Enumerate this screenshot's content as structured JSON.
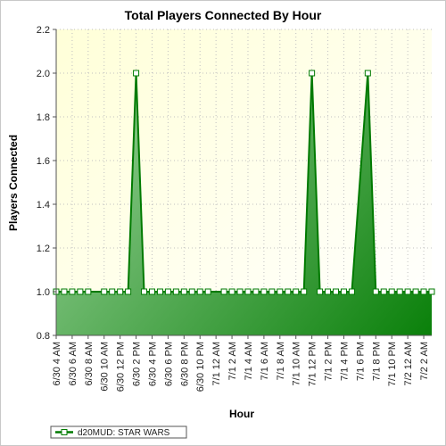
{
  "chart_data": {
    "type": "area",
    "title": "Total Players Connected By Hour",
    "xlabel": "Hour",
    "ylabel": "Players Connected",
    "ylim": [
      0.8,
      2.2
    ],
    "yticks": [
      "0.8",
      "1.0",
      "1.2",
      "1.4",
      "1.6",
      "1.8",
      "2.0",
      "2.2"
    ],
    "grid": true,
    "legend_position": "bottom-left",
    "colors": {
      "line": "#007a00",
      "fill_light": "#a5d8a5",
      "fill_dark": "#0a800a",
      "plot_bg_top": "#ffffd8",
      "plot_bg_bottom": "#ffffff"
    },
    "x": [
      "6/30 4 AM",
      "6/30 5 AM",
      "6/30 6 AM",
      "6/30 7 AM",
      "6/30 8 AM",
      "6/30 9 AM",
      "6/30 10 AM",
      "6/30 11 AM",
      "6/30 12 PM",
      "6/30 1 PM",
      "6/30 2 PM",
      "6/30 3 PM",
      "6/30 4 PM",
      "6/30 5 PM",
      "6/30 6 PM",
      "6/30 7 PM",
      "6/30 8 PM",
      "6/30 9 PM",
      "6/30 10 PM",
      "6/30 11 PM",
      "7/1 12 AM",
      "7/1 1 AM",
      "7/1 2 AM",
      "7/1 3 AM",
      "7/1 4 AM",
      "7/1 5 AM",
      "7/1 6 AM",
      "7/1 7 AM",
      "7/1 8 AM",
      "7/1 9 AM",
      "7/1 10 AM",
      "7/1 11 AM",
      "7/1 12 PM",
      "7/1 1 PM",
      "7/1 2 PM",
      "7/1 3 PM",
      "7/1 4 PM",
      "7/1 5 PM",
      "7/1 6 PM",
      "7/1 7 PM",
      "7/1 8 PM",
      "7/1 9 PM",
      "7/1 10 PM",
      "7/1 11 PM",
      "7/2 12 AM",
      "7/2 1 AM",
      "7/2 2 AM",
      "7/2 3 AM"
    ],
    "x_tick_labels": [
      "6/30 4 AM",
      "6/30 6 AM",
      "6/30 8 AM",
      "6/30 10 AM",
      "6/30 12 PM",
      "6/30 2 PM",
      "6/30 4 PM",
      "6/30 6 PM",
      "6/30 8 PM",
      "6/30 10 PM",
      "7/1 12 AM",
      "7/1 2 AM",
      "7/1 4 AM",
      "7/1 6 AM",
      "7/1 8 AM",
      "7/1 10 AM",
      "7/1 12 PM",
      "7/1 2 PM",
      "7/1 4 PM",
      "7/1 6 PM",
      "7/1 8 PM",
      "7/1 10 PM",
      "7/2 12 AM",
      "7/2 2 AM"
    ],
    "series": [
      {
        "name": "d20MUD: STAR WARS",
        "points": [
          {
            "x": "6/30 4 AM",
            "y": 1.0
          },
          {
            "x": "6/30 5 AM",
            "y": 1.0
          },
          {
            "x": "6/30 6 AM",
            "y": 1.0
          },
          {
            "x": "6/30 7 AM",
            "y": 1.0
          },
          {
            "x": "6/30 8 AM",
            "y": 1.0
          },
          {
            "x": "6/30 10 AM",
            "y": 1.0
          },
          {
            "x": "6/30 11 AM",
            "y": 1.0
          },
          {
            "x": "6/30 12 PM",
            "y": 1.0
          },
          {
            "x": "6/30 1 PM",
            "y": 1.0
          },
          {
            "x": "6/30 2 PM",
            "y": 2.0
          },
          {
            "x": "6/30 3 PM",
            "y": 1.0
          },
          {
            "x": "6/30 4 PM",
            "y": 1.0
          },
          {
            "x": "6/30 5 PM",
            "y": 1.0
          },
          {
            "x": "6/30 6 PM",
            "y": 1.0
          },
          {
            "x": "6/30 7 PM",
            "y": 1.0
          },
          {
            "x": "6/30 8 PM",
            "y": 1.0
          },
          {
            "x": "6/30 9 PM",
            "y": 1.0
          },
          {
            "x": "6/30 10 PM",
            "y": 1.0
          },
          {
            "x": "6/30 11 PM",
            "y": 1.0
          },
          {
            "x": "7/1 1 AM",
            "y": 1.0
          },
          {
            "x": "7/1 2 AM",
            "y": 1.0
          },
          {
            "x": "7/1 3 AM",
            "y": 1.0
          },
          {
            "x": "7/1 4 AM",
            "y": 1.0
          },
          {
            "x": "7/1 5 AM",
            "y": 1.0
          },
          {
            "x": "7/1 6 AM",
            "y": 1.0
          },
          {
            "x": "7/1 7 AM",
            "y": 1.0
          },
          {
            "x": "7/1 8 AM",
            "y": 1.0
          },
          {
            "x": "7/1 9 AM",
            "y": 1.0
          },
          {
            "x": "7/1 10 AM",
            "y": 1.0
          },
          {
            "x": "7/1 11 AM",
            "y": 1.0
          },
          {
            "x": "7/1 12 PM",
            "y": 2.0
          },
          {
            "x": "7/1 1 PM",
            "y": 1.0
          },
          {
            "x": "7/1 2 PM",
            "y": 1.0
          },
          {
            "x": "7/1 3 PM",
            "y": 1.0
          },
          {
            "x": "7/1 4 PM",
            "y": 1.0
          },
          {
            "x": "7/1 5 PM",
            "y": 1.0
          },
          {
            "x": "7/1 7 PM",
            "y": 2.0
          },
          {
            "x": "7/1 8 PM",
            "y": 1.0
          },
          {
            "x": "7/1 9 PM",
            "y": 1.0
          },
          {
            "x": "7/1 10 PM",
            "y": 1.0
          },
          {
            "x": "7/1 11 PM",
            "y": 1.0
          },
          {
            "x": "7/2 12 AM",
            "y": 1.0
          },
          {
            "x": "7/2 1 AM",
            "y": 1.0
          },
          {
            "x": "7/2 2 AM",
            "y": 1.0
          },
          {
            "x": "7/2 3 AM",
            "y": 1.0
          }
        ]
      }
    ]
  }
}
